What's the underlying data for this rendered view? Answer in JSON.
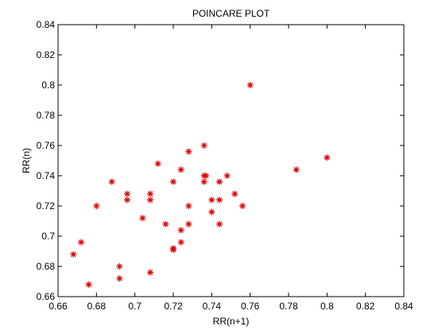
{
  "chart_data": {
    "type": "scatter",
    "title": "POINCARE PLOT",
    "xlabel": "RR(n+1)",
    "ylabel": "RR(n)",
    "xlim": [
      0.66,
      0.84
    ],
    "ylim": [
      0.66,
      0.84
    ],
    "xticks": [
      "0.66",
      "0.68",
      "0.7",
      "0.72",
      "0.74",
      "0.76",
      "0.78",
      "0.8",
      "0.82",
      "0.84"
    ],
    "yticks": [
      "0.66",
      "0.68",
      "0.7",
      "0.72",
      "0.74",
      "0.76",
      "0.78",
      "0.8",
      "0.82",
      "0.84"
    ],
    "grid": false,
    "marker": "*",
    "color": "#dd0000",
    "series": [
      {
        "points": [
          [
            0.668,
            0.688
          ],
          [
            0.672,
            0.696
          ],
          [
            0.676,
            0.668
          ],
          [
            0.68,
            0.72
          ],
          [
            0.688,
            0.736
          ],
          [
            0.692,
            0.68
          ],
          [
            0.692,
            0.672
          ],
          [
            0.696,
            0.728
          ],
          [
            0.696,
            0.724
          ],
          [
            0.704,
            0.712
          ],
          [
            0.708,
            0.728
          ],
          [
            0.708,
            0.724
          ],
          [
            0.708,
            0.676
          ],
          [
            0.712,
            0.748
          ],
          [
            0.716,
            0.708
          ],
          [
            0.72,
            0.736
          ],
          [
            0.72,
            0.692
          ],
          [
            0.72,
            0.691
          ],
          [
            0.724,
            0.744
          ],
          [
            0.724,
            0.704
          ],
          [
            0.724,
            0.696
          ],
          [
            0.728,
            0.756
          ],
          [
            0.728,
            0.72
          ],
          [
            0.728,
            0.708
          ],
          [
            0.736,
            0.76
          ],
          [
            0.736,
            0.74
          ],
          [
            0.737,
            0.74
          ],
          [
            0.736,
            0.736
          ],
          [
            0.74,
            0.724
          ],
          [
            0.74,
            0.716
          ],
          [
            0.744,
            0.736
          ],
          [
            0.744,
            0.724
          ],
          [
            0.744,
            0.708
          ],
          [
            0.748,
            0.74
          ],
          [
            0.752,
            0.728
          ],
          [
            0.756,
            0.72
          ],
          [
            0.76,
            0.8
          ],
          [
            0.784,
            0.744
          ],
          [
            0.8,
            0.752
          ]
        ]
      }
    ]
  }
}
